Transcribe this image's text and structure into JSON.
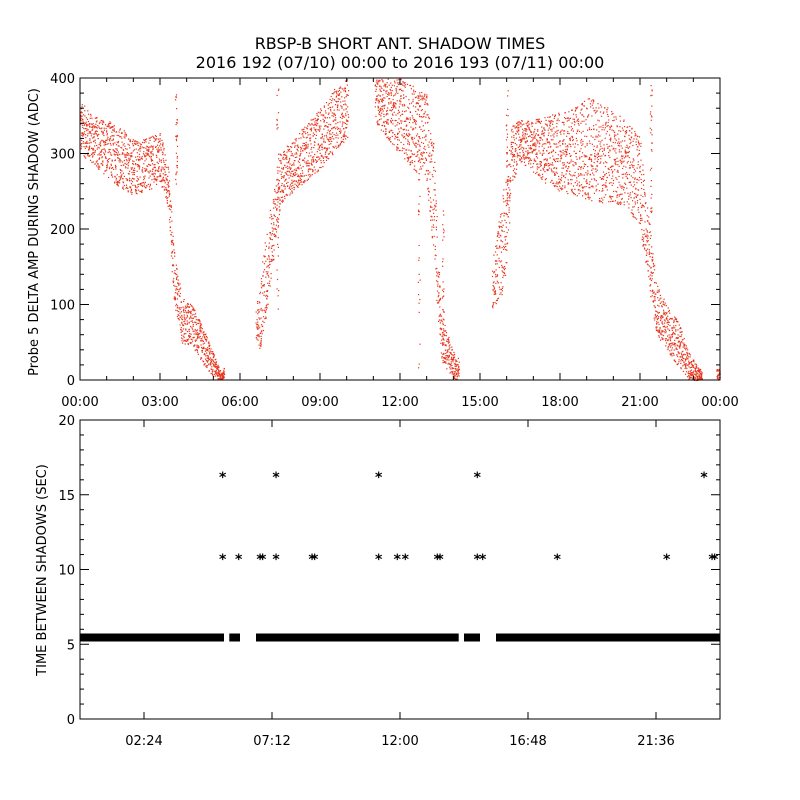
{
  "title_line1": "RBSP-B SHORT ANT. SHADOW TIMES",
  "title_line2": "2016 192 (07/10) 00:00 to 2016 193 (07/11) 00:00",
  "colors": {
    "amp_points": "#e8341c",
    "interval_points": "#000000",
    "axes": "#000000"
  },
  "chart_data": [
    {
      "type": "scatter",
      "name": "top",
      "ylabel": "Probe 5 DELTA AMP DURING SHADOW (ADC)",
      "xlabel": "",
      "xlim": [
        0,
        24
      ],
      "ylim": [
        0,
        400
      ],
      "x_ticks": [
        0,
        3,
        6,
        9,
        12,
        15,
        18,
        21,
        24
      ],
      "x_tick_labels": [
        "00:00",
        "03:00",
        "06:00",
        "09:00",
        "12:00",
        "15:00",
        "18:00",
        "21:00",
        "00:00"
      ],
      "y_ticks": [
        0,
        100,
        200,
        300,
        400
      ],
      "y_tick_labels": [
        "0",
        "100",
        "200",
        "300",
        "400"
      ],
      "grid": false,
      "marker": "dot",
      "bands": [
        [
          0.0,
          300,
          370
        ],
        [
          0.5,
          285,
          350
        ],
        [
          1.0,
          270,
          345
        ],
        [
          1.5,
          255,
          335
        ],
        [
          2.0,
          245,
          320
        ],
        [
          2.5,
          250,
          320
        ],
        [
          3.0,
          260,
          330
        ],
        [
          3.3,
          230,
          280
        ],
        [
          3.5,
          110,
          180
        ],
        [
          3.8,
          50,
          110
        ],
        [
          4.2,
          45,
          100
        ],
        [
          4.6,
          20,
          70
        ],
        [
          5.0,
          5,
          35
        ],
        [
          5.3,
          0,
          10
        ],
        [
          6.7,
          40,
          110
        ],
        [
          6.9,
          60,
          180
        ],
        [
          7.2,
          150,
          240
        ],
        [
          7.5,
          230,
          300
        ],
        [
          8.0,
          250,
          320
        ],
        [
          8.5,
          265,
          340
        ],
        [
          9.0,
          280,
          360
        ],
        [
          9.5,
          300,
          385
        ],
        [
          10.0,
          320,
          400
        ],
        [
          11.1,
          340,
          400
        ],
        [
          11.5,
          320,
          400
        ],
        [
          12.0,
          300,
          400
        ],
        [
          12.5,
          280,
          390
        ],
        [
          13.0,
          260,
          380
        ],
        [
          13.3,
          150,
          300
        ],
        [
          13.5,
          30,
          100
        ],
        [
          13.8,
          10,
          60
        ],
        [
          14.1,
          0,
          25
        ],
        [
          15.5,
          95,
          170
        ],
        [
          15.9,
          120,
          260
        ],
        [
          16.2,
          260,
          340
        ],
        [
          16.5,
          290,
          345
        ],
        [
          17.0,
          275,
          345
        ],
        [
          17.5,
          260,
          350
        ],
        [
          18.0,
          250,
          355
        ],
        [
          18.5,
          245,
          360
        ],
        [
          19.0,
          240,
          375
        ],
        [
          19.5,
          235,
          370
        ],
        [
          20.0,
          235,
          355
        ],
        [
          20.5,
          230,
          345
        ],
        [
          21.0,
          200,
          320
        ],
        [
          21.3,
          130,
          220
        ],
        [
          21.6,
          60,
          130
        ],
        [
          22.0,
          40,
          100
        ],
        [
          22.4,
          20,
          80
        ],
        [
          22.8,
          0,
          40
        ],
        [
          23.2,
          0,
          15
        ],
        [
          24.0,
          0,
          15
        ]
      ],
      "gaps": [
        [
          5.4,
          6.6
        ],
        [
          10.05,
          11.05
        ],
        [
          14.2,
          15.45
        ],
        [
          23.3,
          23.85
        ]
      ],
      "spikes": [
        [
          3.6,
          260,
          380
        ],
        [
          7.4,
          80,
          395
        ],
        [
          12.7,
          0,
          400
        ],
        [
          13.6,
          20,
          230
        ],
        [
          16.0,
          230,
          400
        ],
        [
          21.4,
          220,
          400
        ]
      ]
    },
    {
      "type": "scatter",
      "name": "bottom",
      "ylabel": "TIME BETWEEN SHADOWS (SEC)",
      "xlabel": "",
      "xlim": [
        0,
        24
      ],
      "ylim": [
        0,
        20
      ],
      "x_ticks": [
        2.4,
        7.2,
        12.0,
        16.8,
        21.6
      ],
      "x_tick_labels": [
        "02:24",
        "07:12",
        "12:00",
        "16:48",
        "21:36"
      ],
      "y_ticks": [
        0,
        5,
        10,
        15,
        20
      ],
      "y_tick_labels": [
        "0",
        "5",
        "10",
        "15",
        "20"
      ],
      "grid": false,
      "marker": "asterisk",
      "baseline_value": 5.45,
      "baseline_segments": [
        [
          0.0,
          5.4
        ],
        [
          5.6,
          6.0
        ],
        [
          6.6,
          14.2
        ],
        [
          14.4,
          15.0
        ],
        [
          15.6,
          24.0
        ]
      ],
      "points": [
        [
          5.35,
          16.4
        ],
        [
          7.35,
          16.4
        ],
        [
          11.2,
          16.4
        ],
        [
          14.9,
          16.4
        ],
        [
          23.4,
          16.4
        ],
        [
          5.35,
          10.9
        ],
        [
          5.95,
          10.9
        ],
        [
          6.75,
          10.9
        ],
        [
          6.85,
          10.9
        ],
        [
          7.35,
          10.9
        ],
        [
          8.7,
          10.9
        ],
        [
          8.8,
          10.9
        ],
        [
          11.2,
          10.9
        ],
        [
          11.9,
          10.9
        ],
        [
          12.2,
          10.9
        ],
        [
          13.4,
          10.9
        ],
        [
          13.5,
          10.9
        ],
        [
          14.9,
          10.9
        ],
        [
          15.1,
          10.9
        ],
        [
          17.9,
          10.9
        ],
        [
          22.0,
          10.9
        ],
        [
          23.7,
          10.9
        ],
        [
          23.8,
          10.9
        ]
      ]
    }
  ]
}
